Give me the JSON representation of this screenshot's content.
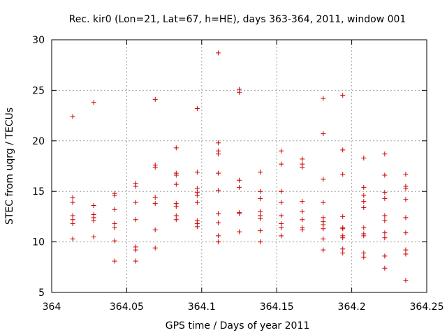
{
  "chart_data": {
    "type": "scatter",
    "title": "Rec. kir0 (Lon=21, Lat=67, h=HE), days 363-364, 2011, window 001",
    "xlabel": "GPS time / Days of year 2011",
    "ylabel": "STEC from uqrg / TECUs",
    "xlim": [
      364,
      364.25
    ],
    "ylim": [
      5,
      30
    ],
    "xticks": [
      364,
      364.05,
      364.1,
      364.15,
      364.2,
      364.25
    ],
    "xtick_labels": [
      "364",
      "364.05",
      "364.1",
      "364.15",
      "364.2",
      "364.25"
    ],
    "yticks": [
      5,
      10,
      15,
      20,
      25,
      30
    ],
    "ytick_labels": [
      "5",
      "10",
      "15",
      "20",
      "25",
      "30"
    ],
    "grid": true,
    "marker": "plus",
    "color": "#cc0000",
    "points": [
      [
        364.014,
        22.4
      ],
      [
        364.014,
        14.4
      ],
      [
        364.014,
        13.9
      ],
      [
        364.014,
        12.6
      ],
      [
        364.014,
        12.2
      ],
      [
        364.014,
        11.8
      ],
      [
        364.014,
        10.3
      ],
      [
        364.028,
        23.8
      ],
      [
        364.028,
        13.6
      ],
      [
        364.028,
        12.7
      ],
      [
        364.028,
        12.4
      ],
      [
        364.028,
        12.1
      ],
      [
        364.028,
        10.5
      ],
      [
        364.042,
        14.8
      ],
      [
        364.042,
        14.6
      ],
      [
        364.042,
        13.2
      ],
      [
        364.042,
        11.8
      ],
      [
        364.042,
        11.4
      ],
      [
        364.042,
        10.1
      ],
      [
        364.042,
        8.1
      ],
      [
        364.056,
        15.8
      ],
      [
        364.056,
        15.5
      ],
      [
        364.056,
        13.9
      ],
      [
        364.056,
        12.2
      ],
      [
        364.056,
        9.5
      ],
      [
        364.056,
        9.2
      ],
      [
        364.056,
        8.1
      ],
      [
        364.069,
        24.1
      ],
      [
        364.069,
        17.6
      ],
      [
        364.069,
        17.4
      ],
      [
        364.069,
        14.4
      ],
      [
        364.069,
        13.8
      ],
      [
        364.069,
        11.2
      ],
      [
        364.069,
        9.4
      ],
      [
        364.083,
        19.3
      ],
      [
        364.083,
        16.8
      ],
      [
        364.083,
        16.6
      ],
      [
        364.083,
        15.7
      ],
      [
        364.083,
        13.8
      ],
      [
        364.083,
        13.5
      ],
      [
        364.083,
        12.6
      ],
      [
        364.083,
        12.2
      ],
      [
        364.097,
        23.2
      ],
      [
        364.097,
        16.9
      ],
      [
        364.097,
        15.3
      ],
      [
        364.097,
        14.9
      ],
      [
        364.097,
        14.6
      ],
      [
        364.097,
        13.9
      ],
      [
        364.097,
        12.1
      ],
      [
        364.097,
        11.8
      ],
      [
        364.097,
        11.5
      ],
      [
        364.111,
        28.7
      ],
      [
        364.111,
        19.8
      ],
      [
        364.111,
        19.0
      ],
      [
        364.111,
        18.7
      ],
      [
        364.111,
        16.8
      ],
      [
        364.111,
        15.1
      ],
      [
        364.111,
        12.8
      ],
      [
        364.111,
        11.9
      ],
      [
        364.111,
        10.6
      ],
      [
        364.111,
        10.0
      ],
      [
        364.125,
        25.1
      ],
      [
        364.125,
        24.8
      ],
      [
        364.125,
        16.1
      ],
      [
        364.125,
        15.4
      ],
      [
        364.125,
        12.9
      ],
      [
        364.125,
        12.8
      ],
      [
        364.125,
        11.0
      ],
      [
        364.139,
        16.9
      ],
      [
        364.139,
        15.0
      ],
      [
        364.139,
        14.3
      ],
      [
        364.139,
        13.0
      ],
      [
        364.139,
        12.6
      ],
      [
        364.139,
        12.3
      ],
      [
        364.139,
        11.1
      ],
      [
        364.139,
        10.0
      ],
      [
        364.153,
        19.0
      ],
      [
        364.153,
        17.7
      ],
      [
        364.153,
        15.0
      ],
      [
        364.153,
        13.9
      ],
      [
        364.153,
        12.6
      ],
      [
        364.153,
        11.8
      ],
      [
        364.153,
        11.4
      ],
      [
        364.153,
        10.6
      ],
      [
        364.167,
        18.2
      ],
      [
        364.167,
        17.7
      ],
      [
        364.167,
        17.4
      ],
      [
        364.167,
        14.0
      ],
      [
        364.167,
        13.0
      ],
      [
        364.167,
        12.2
      ],
      [
        364.167,
        11.4
      ],
      [
        364.167,
        11.2
      ],
      [
        364.181,
        24.2
      ],
      [
        364.181,
        20.7
      ],
      [
        364.181,
        16.2
      ],
      [
        364.181,
        13.9
      ],
      [
        364.181,
        12.4
      ],
      [
        364.181,
        12.0
      ],
      [
        364.181,
        11.7
      ],
      [
        364.181,
        11.3
      ],
      [
        364.181,
        10.3
      ],
      [
        364.181,
        9.2
      ],
      [
        364.194,
        24.5
      ],
      [
        364.194,
        19.1
      ],
      [
        364.194,
        16.7
      ],
      [
        364.194,
        12.5
      ],
      [
        364.194,
        11.4
      ],
      [
        364.194,
        11.3
      ],
      [
        364.194,
        10.6
      ],
      [
        364.194,
        10.4
      ],
      [
        364.194,
        9.3
      ],
      [
        364.194,
        8.9
      ],
      [
        364.208,
        18.3
      ],
      [
        364.208,
        15.4
      ],
      [
        364.208,
        14.6
      ],
      [
        364.208,
        14.0
      ],
      [
        364.208,
        13.4
      ],
      [
        364.208,
        11.4
      ],
      [
        364.208,
        10.8
      ],
      [
        364.208,
        10.6
      ],
      [
        364.208,
        8.9
      ],
      [
        364.208,
        8.5
      ],
      [
        364.222,
        18.7
      ],
      [
        364.222,
        16.6
      ],
      [
        364.222,
        14.9
      ],
      [
        364.222,
        14.3
      ],
      [
        364.222,
        12.6
      ],
      [
        364.222,
        12.1
      ],
      [
        364.222,
        10.9
      ],
      [
        364.222,
        10.4
      ],
      [
        364.222,
        8.6
      ],
      [
        364.222,
        7.4
      ],
      [
        364.236,
        16.7
      ],
      [
        364.236,
        15.5
      ],
      [
        364.236,
        15.3
      ],
      [
        364.236,
        14.2
      ],
      [
        364.236,
        12.4
      ],
      [
        364.236,
        10.9
      ],
      [
        364.236,
        9.2
      ],
      [
        364.236,
        8.8
      ],
      [
        364.236,
        6.2
      ]
    ]
  }
}
